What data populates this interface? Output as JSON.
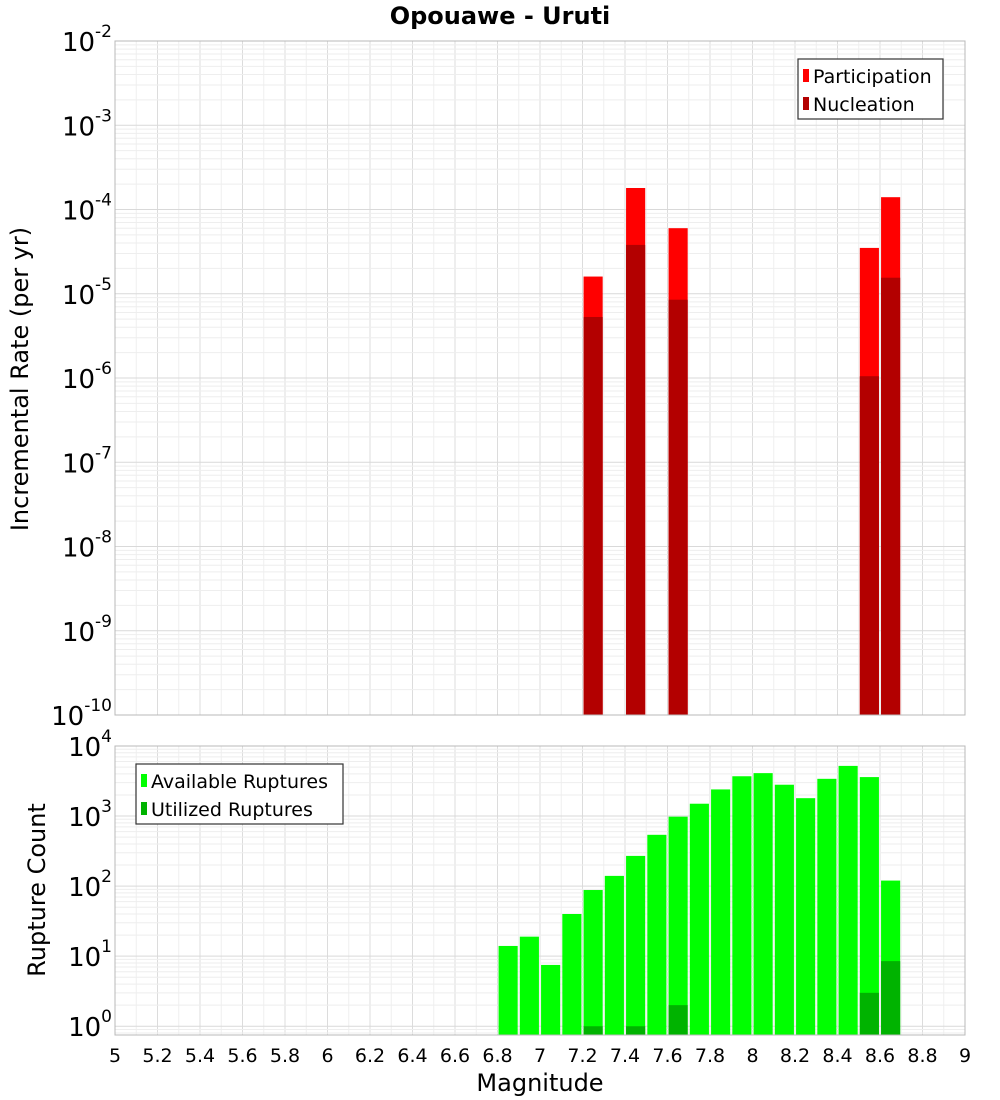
{
  "chart_data": [
    {
      "type": "bar",
      "title": "Opouawe - Uruti",
      "xlabel": "",
      "ylabel": "Incremental Rate (per yr)",
      "yscale": "log",
      "xlim": [
        5,
        9
      ],
      "ylim": [
        1e-10,
        0.01
      ],
      "ytick_labels": [
        {
          "base": "10",
          "exp": "-10",
          "value": 1e-10
        },
        {
          "base": "10",
          "exp": "-9",
          "value": 1e-09
        },
        {
          "base": "10",
          "exp": "-8",
          "value": 1e-08
        },
        {
          "base": "10",
          "exp": "-7",
          "value": 1e-07
        },
        {
          "base": "10",
          "exp": "-6",
          "value": 1e-06
        },
        {
          "base": "10",
          "exp": "-5",
          "value": 1e-05
        },
        {
          "base": "10",
          "exp": "-4",
          "value": 0.0001
        },
        {
          "base": "10",
          "exp": "-3",
          "value": 0.001
        },
        {
          "base": "10",
          "exp": "-2",
          "value": 0.01
        }
      ],
      "grid": true,
      "legend_position": "top-right",
      "bar_width": 0.09,
      "series": [
        {
          "name": "Participation",
          "color": "#ff0000",
          "x": [
            7.25,
            7.45,
            7.65,
            8.55,
            8.65
          ],
          "values": [
            1.6e-05,
            0.00018,
            6e-05,
            3.5e-05,
            0.00014
          ]
        },
        {
          "name": "Nucleation",
          "color": "#b30000",
          "x": [
            7.25,
            7.45,
            7.65,
            8.55,
            8.65
          ],
          "values": [
            5.3e-06,
            3.8e-05,
            8.5e-06,
            1.05e-06,
            1.55e-05
          ]
        }
      ]
    },
    {
      "type": "bar",
      "title": "",
      "xlabel": "Magnitude",
      "ylabel": "Rupture Count",
      "yscale": "log",
      "xlim": [
        5,
        9
      ],
      "ylim": [
        0.75,
        10000
      ],
      "ytick_labels": [
        {
          "base": "10",
          "exp": "0",
          "value": 1
        },
        {
          "base": "10",
          "exp": "1",
          "value": 10
        },
        {
          "base": "10",
          "exp": "2",
          "value": 100
        },
        {
          "base": "10",
          "exp": "3",
          "value": 1000
        },
        {
          "base": "10",
          "exp": "4",
          "value": 10000
        }
      ],
      "xtick_labels": [
        "5",
        "5.2",
        "5.4",
        "5.6",
        "5.8",
        "6",
        "6.2",
        "6.4",
        "6.6",
        "6.8",
        "7",
        "7.2",
        "7.4",
        "7.6",
        "7.8",
        "8",
        "8.2",
        "8.4",
        "8.6",
        "8.8",
        "9"
      ],
      "xtick_values": [
        5,
        5.2,
        5.4,
        5.6,
        5.8,
        6,
        6.2,
        6.4,
        6.6,
        6.8,
        7,
        7.2,
        7.4,
        7.6,
        7.8,
        8,
        8.2,
        8.4,
        8.6,
        8.8,
        9
      ],
      "grid": true,
      "legend_position": "top-left",
      "bar_width": 0.09,
      "series": [
        {
          "name": "Available Ruptures",
          "color": "#00ff00",
          "x": [
            6.85,
            6.95,
            7.05,
            7.15,
            7.25,
            7.35,
            7.45,
            7.55,
            7.65,
            7.75,
            7.85,
            7.95,
            8.05,
            8.15,
            8.25,
            8.35,
            8.45,
            8.55,
            8.65
          ],
          "values": [
            14,
            19,
            7.5,
            40,
            88,
            140,
            270,
            540,
            980,
            1500,
            2400,
            3700,
            4100,
            2800,
            1800,
            3400,
            5200,
            3600,
            120
          ]
        },
        {
          "name": "Utilized Ruptures",
          "color": "#00b300",
          "x": [
            7.25,
            7.45,
            7.65,
            8.55,
            8.65
          ],
          "values": [
            1,
            1,
            2,
            3,
            8.5
          ]
        }
      ]
    }
  ]
}
